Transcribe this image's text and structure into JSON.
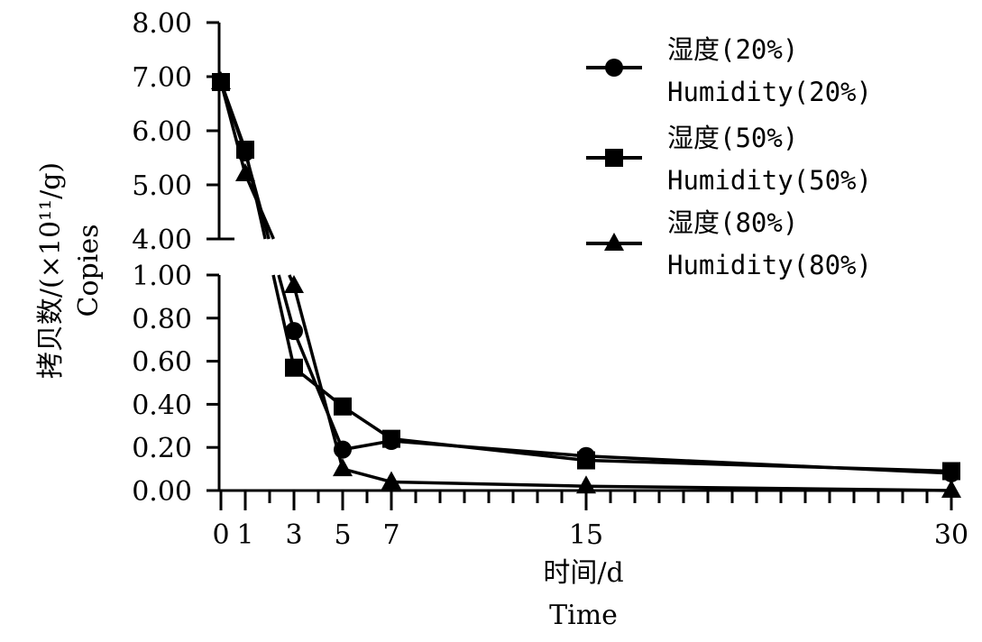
{
  "chart_data": {
    "type": "line",
    "title": "",
    "ylabel": "拷贝数/(×10¹¹/g)",
    "ylabel_en": "Copies",
    "xlabel": "时间/d",
    "xlabel_en": "Time",
    "x_ticks": [
      "0",
      "1",
      "3",
      "5",
      "7",
      "15",
      "30"
    ],
    "x_tick_values": [
      0,
      1,
      3,
      5,
      7,
      15,
      30
    ],
    "xlim": [
      0,
      30
    ],
    "y_break": true,
    "ylim_lower": [
      0,
      1
    ],
    "ylim_upper": [
      4,
      8
    ],
    "y_ticks_lower": [
      "0.00",
      "0.20",
      "0.40",
      "0.60",
      "0.80",
      "1.00"
    ],
    "y_ticks_upper": [
      "4.00",
      "5.00",
      "6.00",
      "7.00",
      "8.00"
    ],
    "legend_position": "top-right",
    "series": [
      {
        "name": "湿度(20%)",
        "name_en": "Humidity(20%)",
        "marker": "circle",
        "color": "#000000",
        "x": [
          0,
          1,
          3,
          5,
          7,
          15,
          30
        ],
        "y": [
          6.9,
          5.6,
          0.74,
          0.19,
          0.23,
          0.16,
          0.08
        ]
      },
      {
        "name": "湿度(50%)",
        "name_en": "Humidity(50%)",
        "marker": "square",
        "color": "#000000",
        "x": [
          0,
          1,
          3,
          5,
          7,
          15,
          30
        ],
        "y": [
          6.9,
          5.65,
          0.57,
          0.39,
          0.24,
          0.14,
          0.09
        ]
      },
      {
        "name": "湿度(80%)",
        "name_en": "Humidity(80%)",
        "marker": "triangle",
        "color": "#000000",
        "x": [
          0,
          1,
          3,
          5,
          7,
          15,
          30
        ],
        "y": [
          6.9,
          5.2,
          0.95,
          0.1,
          0.04,
          0.02,
          0.0
        ]
      }
    ]
  }
}
